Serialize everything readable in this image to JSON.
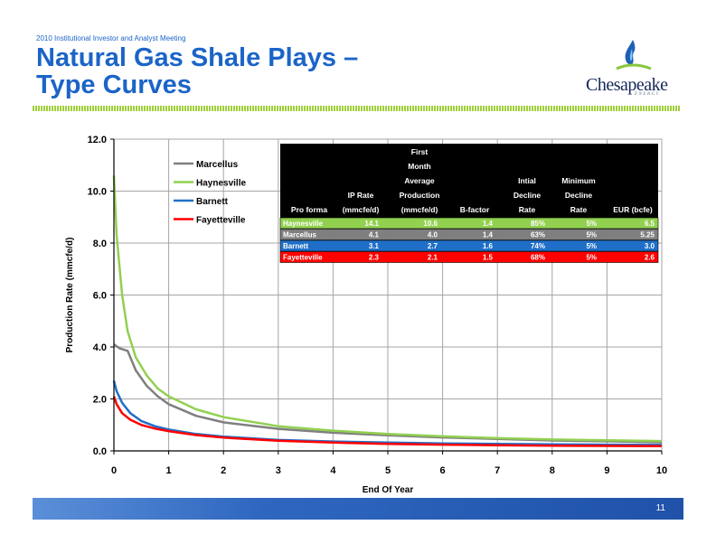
{
  "header": {
    "meeting": "2010 Institutional Investor and Analyst Meeting",
    "title_line1": "Natural Gas Shale Plays –",
    "title_line2": "Type Curves"
  },
  "logo": {
    "word": "Chesapeake",
    "sub": "ENERGY"
  },
  "footer": {
    "page_number": "11"
  },
  "colors": {
    "marcellus": "#7f7f7f",
    "haynesville": "#92d050",
    "barnett": "#1f6fc8",
    "fayetteville": "#ff0000",
    "table_header": "#000000",
    "accent": "#1b64c8"
  },
  "table": {
    "headers": [
      [
        "Pro forma"
      ],
      [
        "IP Rate",
        "(mmcfe/d)"
      ],
      [
        "First",
        "Month",
        "Average",
        "Production",
        "(mmcfe/d)"
      ],
      [
        "B-factor"
      ],
      [
        "Intial",
        "Decline",
        "Rate"
      ],
      [
        "Minimum",
        "Decline",
        "Rate"
      ],
      [
        "EUR (bcfe)"
      ]
    ],
    "rows": [
      {
        "name": "Haynesville",
        "color": "#92d050",
        "cells": [
          "Haynesville",
          "14.1",
          "10.6",
          "1.4",
          "85%",
          "5%",
          "6.5"
        ]
      },
      {
        "name": "Marcellus",
        "color": "#7f7f7f",
        "cells": [
          "Marcellus",
          "4.1",
          "4.0",
          "1.4",
          "63%",
          "5%",
          "5.25"
        ]
      },
      {
        "name": "Barnett",
        "color": "#1f6fc8",
        "cells": [
          "Barnett",
          "3.1",
          "2.7",
          "1.6",
          "74%",
          "5%",
          "3.0"
        ]
      },
      {
        "name": "Fayetteville",
        "color": "#ff0000",
        "cells": [
          "Fayetteville",
          "2.3",
          "2.1",
          "1.5",
          "68%",
          "5%",
          "2.6"
        ]
      }
    ]
  },
  "chart_data": {
    "type": "line",
    "xlabel": "End Of Year",
    "ylabel": "Production Rate (mmcfe/d)",
    "xlim": [
      0,
      10
    ],
    "ylim": [
      0,
      12
    ],
    "x_ticks": [
      "0",
      "1",
      "2",
      "3",
      "4",
      "5",
      "6",
      "7",
      "8",
      "9",
      "10"
    ],
    "y_ticks": [
      "0.0",
      "2.0",
      "4.0",
      "6.0",
      "8.0",
      "10.0",
      "12.0"
    ],
    "grid": true,
    "legend": "top-left",
    "series": [
      {
        "name": "Marcellus",
        "color": "#7f7f7f",
        "x": [
          0,
          0.1,
          0.25,
          0.4,
          0.6,
          0.8,
          1,
          1.5,
          2,
          3,
          4,
          5,
          6,
          7,
          8,
          9,
          10
        ],
        "y": [
          4.1,
          3.95,
          3.85,
          3.1,
          2.5,
          2.1,
          1.8,
          1.35,
          1.1,
          0.85,
          0.7,
          0.6,
          0.52,
          0.46,
          0.4,
          0.37,
          0.33
        ]
      },
      {
        "name": "Haynesville",
        "color": "#92d050",
        "x": [
          0,
          0.05,
          0.15,
          0.25,
          0.4,
          0.6,
          0.8,
          1,
          1.5,
          2,
          3,
          4,
          5,
          6,
          7,
          8,
          9,
          10
        ],
        "y": [
          10.6,
          8.3,
          6.0,
          4.6,
          3.6,
          2.9,
          2.4,
          2.1,
          1.6,
          1.3,
          0.95,
          0.78,
          0.65,
          0.56,
          0.49,
          0.44,
          0.41,
          0.38
        ]
      },
      {
        "name": "Barnett",
        "color": "#1f6fc8",
        "x": [
          0,
          0.05,
          0.15,
          0.3,
          0.5,
          0.75,
          1,
          1.5,
          2,
          3,
          4,
          5,
          6,
          7,
          8,
          9,
          10
        ],
        "y": [
          2.7,
          2.3,
          1.85,
          1.45,
          1.15,
          0.95,
          0.82,
          0.65,
          0.55,
          0.42,
          0.36,
          0.32,
          0.29,
          0.27,
          0.25,
          0.24,
          0.23
        ]
      },
      {
        "name": "Fayetteville",
        "color": "#ff0000",
        "x": [
          0,
          0.05,
          0.15,
          0.3,
          0.5,
          0.75,
          1,
          1.5,
          2,
          3,
          4,
          5,
          6,
          7,
          8,
          9,
          10
        ],
        "y": [
          2.1,
          1.8,
          1.45,
          1.2,
          1.0,
          0.86,
          0.76,
          0.61,
          0.51,
          0.39,
          0.32,
          0.27,
          0.24,
          0.22,
          0.2,
          0.19,
          0.18
        ]
      }
    ]
  }
}
